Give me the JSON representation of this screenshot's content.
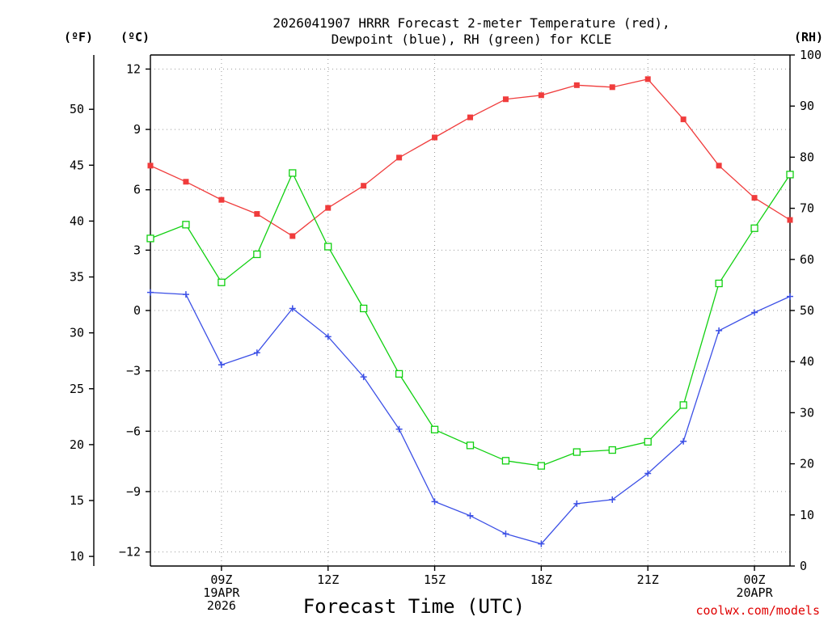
{
  "chart_data": {
    "type": "line",
    "title_line1": "2026041907 HRRR Forecast 2-meter Temperature (red),",
    "title_line2": "Dewpoint (blue), RH (green) for KCLE",
    "xlabel": "Forecast Time (UTC)",
    "credit": "coolwx.com/models",
    "units": {
      "fahrenheit": "(ºF)",
      "celsius": "(ºC)",
      "rh": "(RH)"
    },
    "x_hours": [
      7,
      8,
      9,
      10,
      11,
      12,
      13,
      14,
      15,
      16,
      17,
      18,
      19,
      20,
      21,
      22,
      23,
      24,
      25
    ],
    "x_tick_labels": [
      {
        "hour": 9,
        "lines": [
          "09Z",
          "19APR",
          "2026"
        ]
      },
      {
        "hour": 12,
        "lines": [
          "12Z"
        ]
      },
      {
        "hour": 15,
        "lines": [
          "15Z"
        ]
      },
      {
        "hour": 18,
        "lines": [
          "18Z"
        ]
      },
      {
        "hour": 21,
        "lines": [
          "21Z"
        ]
      },
      {
        "hour": 24,
        "lines": [
          "00Z",
          "20APR"
        ]
      }
    ],
    "xlim": [
      7,
      25
    ],
    "celsius_axis": {
      "ylim": [
        -12.7,
        12.7
      ],
      "ticks": [
        12,
        9,
        6,
        3,
        0,
        -3,
        -6,
        -9,
        -12
      ],
      "tick_labels": [
        "12",
        "9",
        "6",
        "3",
        "0",
        "−3",
        "−6",
        "−9",
        "−12"
      ]
    },
    "fahrenheit_axis": {
      "ticks": [
        50,
        45,
        40,
        35,
        30,
        25,
        20,
        15,
        10
      ],
      "tick_labels": [
        "50",
        "45",
        "40",
        "35",
        "30",
        "25",
        "20",
        "15",
        "10"
      ]
    },
    "rh_axis": {
      "ylim": [
        0,
        100
      ],
      "ticks": [
        100,
        90,
        80,
        70,
        60,
        50,
        40,
        30,
        20,
        10,
        0
      ],
      "tick_labels": [
        "100",
        "90",
        "80",
        "70",
        "60",
        "50",
        "40",
        "30",
        "20",
        "10",
        "0"
      ]
    },
    "series": [
      {
        "name": "2-meter Temperature",
        "unit": "C",
        "axis": "celsius",
        "color": "#f03c3c",
        "marker": "filled-square",
        "values": [
          7.2,
          6.4,
          5.5,
          4.8,
          3.7,
          5.1,
          6.2,
          7.6,
          8.6,
          9.6,
          10.5,
          10.7,
          11.2,
          11.1,
          11.5,
          9.5,
          7.2,
          5.6,
          4.5
        ]
      },
      {
        "name": "Dewpoint",
        "unit": "C",
        "axis": "celsius",
        "color": "#3c50e6",
        "marker": "plus",
        "values": [
          0.9,
          0.8,
          -2.7,
          -2.1,
          0.1,
          -1.3,
          -3.3,
          -5.9,
          -9.5,
          -10.2,
          -11.1,
          -11.6,
          -9.6,
          -9.4,
          -8.1,
          -6.5,
          -1.0,
          -0.1,
          0.7
        ]
      },
      {
        "name": "Relative Humidity",
        "unit": "%",
        "axis": "rh",
        "color": "#10d010",
        "marker": "open-square",
        "values": [
          64.1,
          66.8,
          55.5,
          61.0,
          76.9,
          62.5,
          50.4,
          37.6,
          26.7,
          23.6,
          20.6,
          19.6,
          22.3,
          22.7,
          24.3,
          31.5,
          55.3,
          66.1,
          76.6
        ]
      }
    ]
  }
}
